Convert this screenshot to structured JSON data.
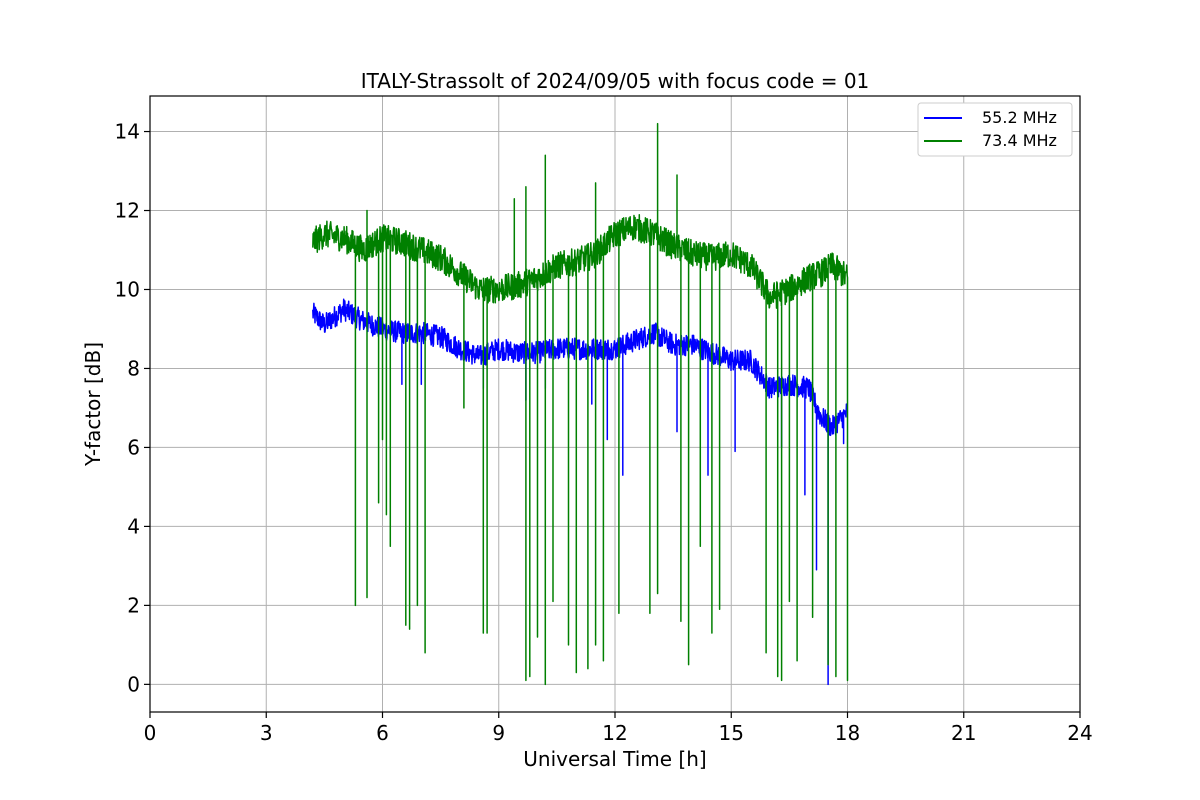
{
  "chart_data": {
    "type": "line",
    "title": "ITALY-Strassolt of 2024/09/05 with focus code = 01",
    "xlabel": "Universal Time [h]",
    "ylabel": "Y-factor [dB]",
    "xlim": [
      0,
      24
    ],
    "ylim": [
      -0.7,
      14.9
    ],
    "xticks": [
      0,
      3,
      6,
      9,
      12,
      15,
      18,
      21,
      24
    ],
    "yticks": [
      0,
      2,
      4,
      6,
      8,
      10,
      12,
      14
    ],
    "grid": true,
    "legend_position": "top-right",
    "series": [
      {
        "name": "55.2 MHz",
        "color": "#0000ff",
        "x": [
          4.2,
          4.5,
          5.0,
          5.5,
          6.0,
          6.5,
          7.0,
          7.5,
          8.0,
          8.5,
          9.0,
          9.5,
          10.0,
          10.5,
          11.0,
          11.5,
          12.0,
          12.5,
          13.0,
          13.5,
          14.0,
          14.5,
          15.0,
          15.5,
          16.0,
          16.5,
          17.0,
          17.3,
          17.6,
          18.0
        ],
        "y": [
          9.4,
          9.1,
          9.5,
          9.2,
          9.0,
          8.9,
          8.9,
          8.8,
          8.5,
          8.3,
          8.5,
          8.4,
          8.4,
          8.5,
          8.5,
          8.5,
          8.5,
          8.7,
          8.9,
          8.6,
          8.6,
          8.4,
          8.2,
          8.2,
          7.5,
          7.6,
          7.5,
          6.8,
          6.5,
          6.9
        ],
        "dips": [
          [
            6.5,
            7.6
          ],
          [
            7.0,
            7.6
          ],
          [
            8.6,
            7.5
          ],
          [
            9.7,
            7.2
          ],
          [
            10.2,
            7.5
          ],
          [
            11.4,
            7.1
          ],
          [
            11.8,
            6.2
          ],
          [
            12.2,
            5.3
          ],
          [
            13.6,
            6.4
          ],
          [
            14.4,
            5.3
          ],
          [
            15.1,
            5.9
          ],
          [
            16.3,
            6.0
          ],
          [
            16.9,
            4.8
          ],
          [
            17.2,
            2.9
          ],
          [
            17.5,
            0.0
          ],
          [
            17.9,
            6.1
          ]
        ]
      },
      {
        "name": "73.4 MHz",
        "color": "#008000",
        "x": [
          4.2,
          4.5,
          5.0,
          5.5,
          6.0,
          6.5,
          7.0,
          7.5,
          8.0,
          8.5,
          9.0,
          9.5,
          10.0,
          10.5,
          11.0,
          11.5,
          12.0,
          12.5,
          13.0,
          13.5,
          14.0,
          14.5,
          15.0,
          15.5,
          16.0,
          16.5,
          17.0,
          17.3,
          17.6,
          18.0
        ],
        "y": [
          11.2,
          11.4,
          11.3,
          11.0,
          11.3,
          11.2,
          11.0,
          10.8,
          10.4,
          10.0,
          10.0,
          10.1,
          10.3,
          10.6,
          10.7,
          10.9,
          11.4,
          11.6,
          11.4,
          11.1,
          10.9,
          10.8,
          10.9,
          10.6,
          9.8,
          10.0,
          10.3,
          10.4,
          10.6,
          10.3
        ],
        "dips": [
          [
            5.3,
            2.0
          ],
          [
            5.6,
            2.2
          ],
          [
            5.9,
            4.6
          ],
          [
            6.0,
            6.2
          ],
          [
            6.1,
            4.3
          ],
          [
            6.2,
            3.5
          ],
          [
            6.6,
            1.5
          ],
          [
            6.7,
            1.4
          ],
          [
            6.9,
            2.0
          ],
          [
            7.1,
            0.8
          ],
          [
            8.1,
            7.0
          ],
          [
            8.6,
            1.3
          ],
          [
            8.7,
            1.3
          ],
          [
            9.7,
            0.1
          ],
          [
            9.8,
            0.2
          ],
          [
            10.0,
            1.2
          ],
          [
            10.2,
            0.0
          ],
          [
            10.4,
            2.1
          ],
          [
            10.8,
            1.0
          ],
          [
            11.0,
            0.3
          ],
          [
            11.3,
            0.4
          ],
          [
            11.5,
            1.0
          ],
          [
            11.7,
            0.6
          ],
          [
            12.1,
            1.8
          ],
          [
            12.9,
            1.8
          ],
          [
            13.1,
            2.3
          ],
          [
            13.7,
            1.6
          ],
          [
            13.9,
            0.5
          ],
          [
            14.2,
            3.5
          ],
          [
            14.5,
            1.3
          ],
          [
            14.7,
            1.9
          ],
          [
            15.9,
            0.8
          ],
          [
            16.2,
            0.2
          ],
          [
            16.3,
            0.1
          ],
          [
            16.5,
            2.1
          ],
          [
            16.7,
            0.6
          ],
          [
            17.1,
            1.7
          ],
          [
            17.5,
            0.5
          ],
          [
            17.7,
            0.2
          ],
          [
            18.0,
            0.1
          ]
        ],
        "spikes": [
          [
            5.6,
            12.0
          ],
          [
            9.4,
            12.3
          ],
          [
            9.7,
            12.6
          ],
          [
            10.2,
            13.4
          ],
          [
            11.5,
            12.7
          ],
          [
            13.1,
            14.2
          ],
          [
            13.6,
            12.9
          ]
        ]
      }
    ]
  }
}
